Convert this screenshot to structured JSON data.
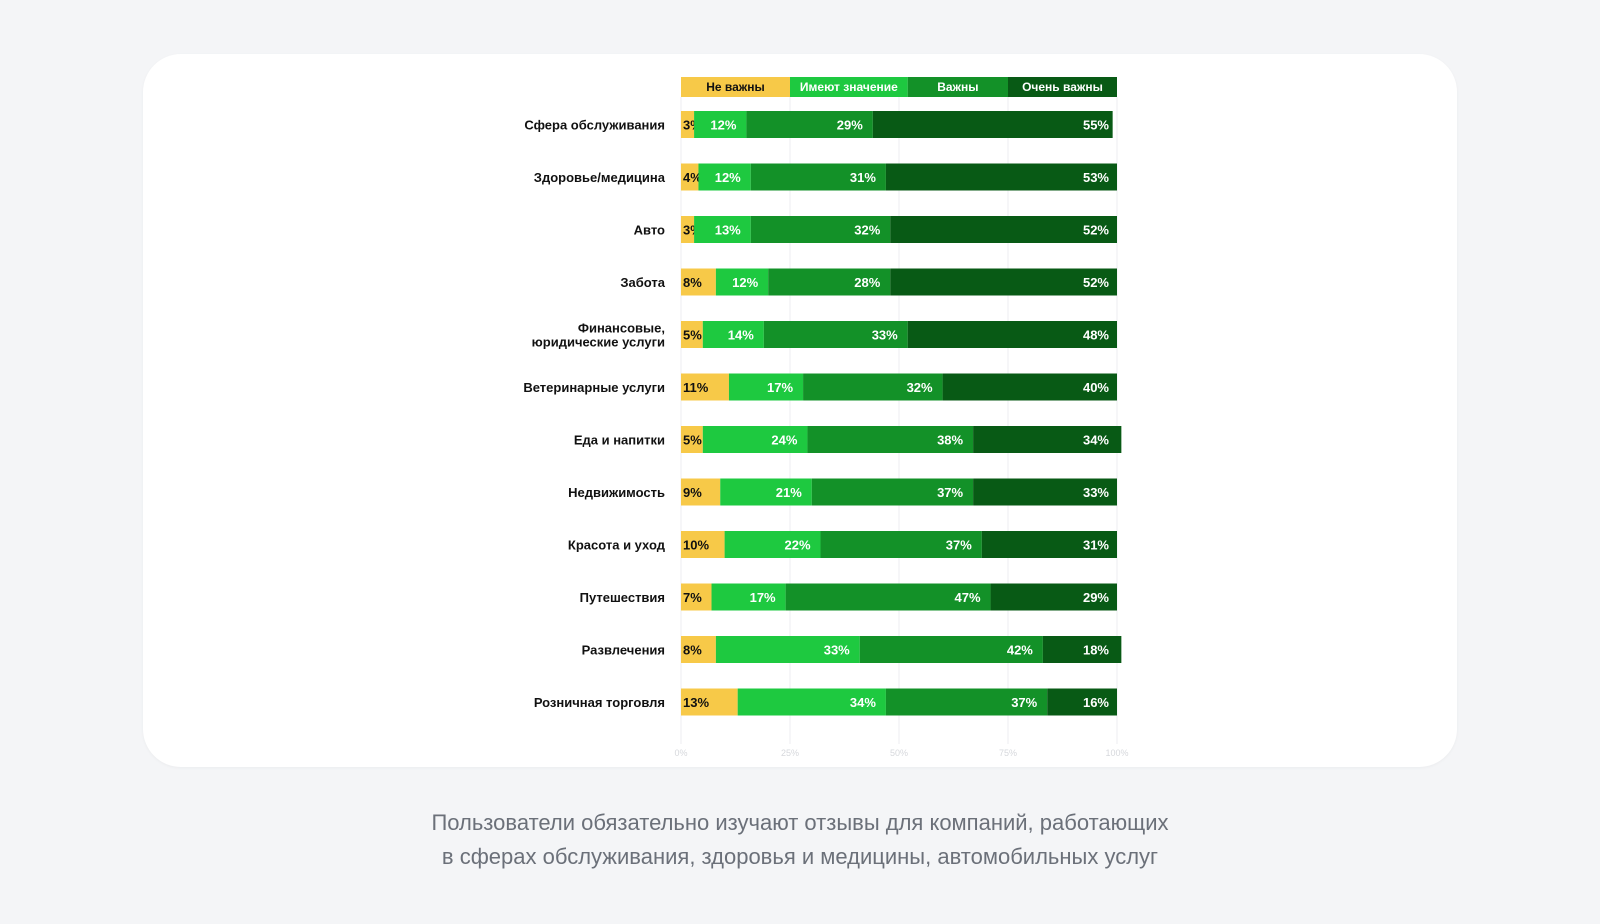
{
  "caption": {
    "line1": "Пользователи обязательно изучают отзывы для компаний, работающих",
    "line2": "в сферах обслуживания, здоровья и медицины, автомобильных услуг"
  },
  "chart_data": {
    "type": "bar",
    "orientation": "horizontal",
    "stacked": true,
    "percent": true,
    "xlim": [
      0,
      100
    ],
    "x_ticks": [
      "0%",
      "25%",
      "50%",
      "75%",
      "100%"
    ],
    "grid": true,
    "legend_position": "top",
    "categories": [
      [
        "Сфера обслуживания"
      ],
      [
        "Здоровье/медицина"
      ],
      [
        "Авто"
      ],
      [
        "Забота"
      ],
      [
        "Финансовые,",
        "юридические услуги"
      ],
      [
        "Ветеринарные услуги"
      ],
      [
        "Еда и напитки"
      ],
      [
        "Недвижимость"
      ],
      [
        "Красота и уход"
      ],
      [
        "Путешествия"
      ],
      [
        "Развлечения"
      ],
      [
        "Розничная торговля"
      ]
    ],
    "series": [
      {
        "name": "Не важны",
        "color": "#f7c948",
        "text_color": "#111111",
        "values": [
          3,
          4,
          3,
          8,
          5,
          11,
          5,
          9,
          10,
          7,
          8,
          13
        ]
      },
      {
        "name": "Имеют значение",
        "color": "#1ec940",
        "text_color": "#ffffff",
        "values": [
          12,
          12,
          13,
          12,
          14,
          17,
          24,
          21,
          22,
          17,
          33,
          34
        ]
      },
      {
        "name": "Важны",
        "color": "#139128",
        "text_color": "#ffffff",
        "values": [
          29,
          31,
          32,
          28,
          33,
          32,
          38,
          37,
          37,
          47,
          42,
          37
        ]
      },
      {
        "name": "Очень важны",
        "color": "#085a15",
        "text_color": "#ffffff",
        "values": [
          55,
          53,
          52,
          52,
          48,
          40,
          34,
          33,
          31,
          29,
          18,
          16
        ]
      }
    ]
  }
}
